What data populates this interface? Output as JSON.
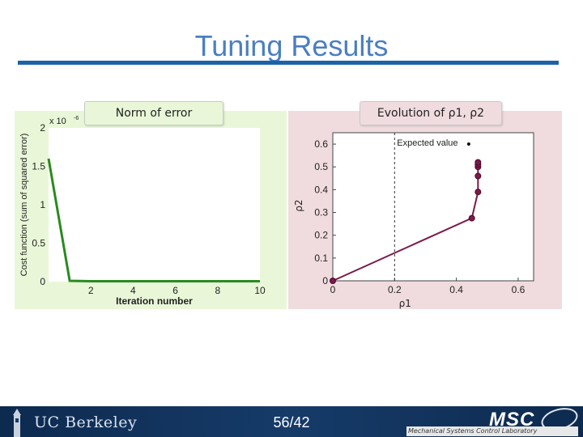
{
  "slide": {
    "title": "Tuning Results",
    "page_number": "56/42",
    "footer_left": "UC Berkeley",
    "footer_logo": "MSC",
    "footer_logo_sub": "Mechanical Systems Control Laboratory"
  },
  "colors": {
    "title": "#4a7fc1",
    "title_rule": "#1b63a7",
    "left_panel_bg": "#e9f7d8",
    "right_panel_bg": "#f0dcdf",
    "line_series": "#2a8a1f",
    "path_series": "#7a1a4a",
    "footer_bg": "#163b69"
  },
  "chart_data": [
    {
      "type": "line",
      "label_box": "Norm of error",
      "xlabel": "Iteration number",
      "ylabel": "Cost function (sum of squared error)",
      "y_multiplier": "x 10",
      "y_multiplier_exp": "-6",
      "xlim": [
        0,
        10
      ],
      "ylim": [
        0,
        2
      ],
      "xticks": [
        2,
        4,
        6,
        8,
        10
      ],
      "yticks": [
        0,
        0.5,
        1,
        1.5,
        2
      ],
      "ytick_labels": [
        "0",
        "0.5",
        "1",
        "1.5",
        "2"
      ],
      "series": [
        {
          "x": [
            0,
            1,
            2,
            3,
            4,
            5,
            6,
            7,
            8,
            9,
            10
          ],
          "y": [
            1.6,
            0.01,
            0.005,
            0.005,
            0.005,
            0.005,
            0.005,
            0.005,
            0.005,
            0.005,
            0.005
          ]
        }
      ],
      "grid": false
    },
    {
      "type": "scatter",
      "label_box": "Evolution of ρ1, ρ2",
      "xlabel": "ρ1",
      "ylabel": "ρ2",
      "xlim": [
        0,
        0.65
      ],
      "ylim": [
        0,
        0.65
      ],
      "xticks": [
        0,
        0.2,
        0.4,
        0.6
      ],
      "xtick_labels": [
        "0",
        "0.2",
        "0.4",
        "0.6"
      ],
      "yticks": [
        0,
        0.1,
        0.2,
        0.3,
        0.4,
        0.5,
        0.6
      ],
      "ytick_labels": [
        "0",
        "0.1",
        "0.2",
        "0.3",
        "0.4",
        "0.5",
        "0.6"
      ],
      "legend_text": "Expected value",
      "expected_value_x": 0.2,
      "series": [
        {
          "x": [
            0,
            0.45,
            0.47,
            0.47,
            0.47,
            0.47,
            0.47
          ],
          "y": [
            0,
            0.275,
            0.39,
            0.46,
            0.5,
            0.51,
            0.52
          ]
        }
      ],
      "grid": false
    }
  ]
}
